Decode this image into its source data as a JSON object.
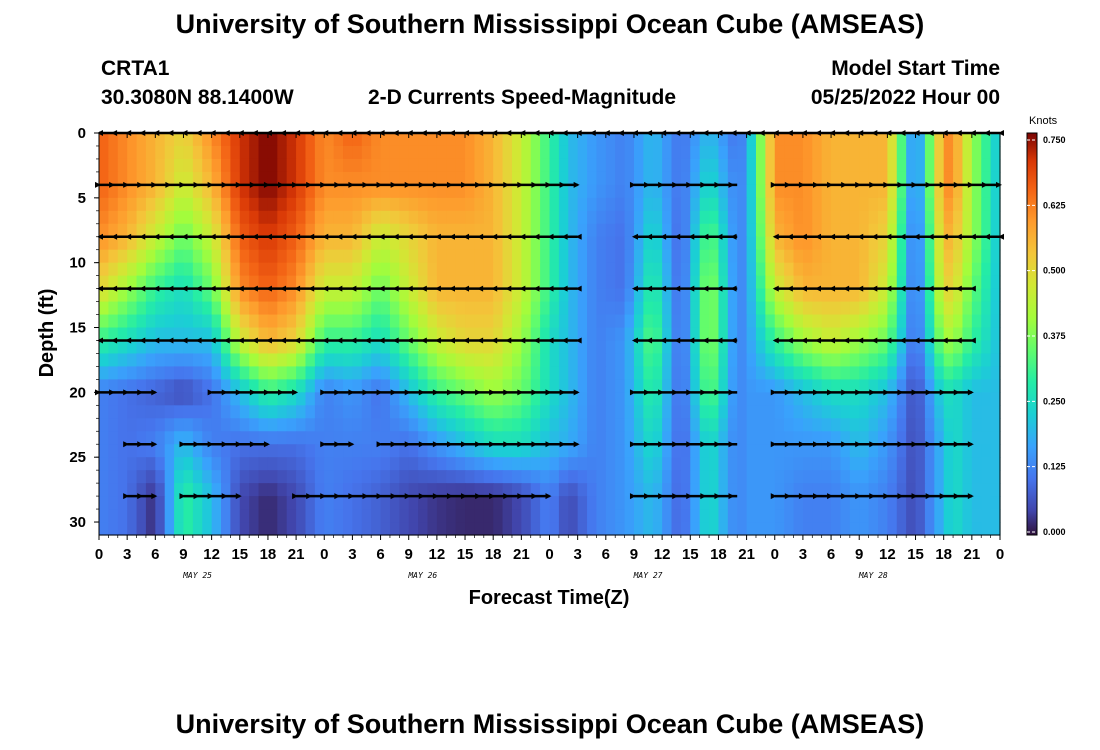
{
  "page": {
    "title_top": "University of Southern Mississippi Ocean Cube (AMSEAS)",
    "title_bottom": "University of Southern Mississippi Ocean Cube (AMSEAS)",
    "station": "CRTA1",
    "coords": "30.3080N  88.1400W",
    "plot_title": "2-D Currents Speed-Magnitude",
    "model_start_label": "Model Start Time",
    "model_start_value": "05/25/2022 Hour 00",
    "units_label": "Knots"
  },
  "chart_data": {
    "type": "heatmap",
    "title": "2-D Currents Speed-Magnitude",
    "xlabel": "Forecast Time(Z)",
    "ylabel": "Depth (ft)",
    "x_range_hours": [
      0,
      96
    ],
    "ylim": [
      31,
      0
    ],
    "y_ticks": [
      0,
      5,
      10,
      15,
      20,
      25,
      30
    ],
    "x_tick_labels": [
      "0",
      "3",
      "6",
      "9",
      "12",
      "15",
      "18",
      "21",
      "0",
      "3",
      "6",
      "9",
      "12",
      "15",
      "18",
      "21",
      "0",
      "3",
      "6",
      "9",
      "12",
      "15",
      "18",
      "21",
      "0",
      "3",
      "6",
      "9",
      "12",
      "15",
      "18",
      "21",
      "0"
    ],
    "day_labels": [
      "MAY 25",
      "MAY 26",
      "MAY 27",
      "MAY 28"
    ],
    "colorbar": {
      "label": "Knots",
      "ticks": [
        "0.750",
        "0.625",
        "0.500",
        "0.375",
        "0.250",
        "0.125",
        "0.000"
      ],
      "min": 0,
      "max": 0.75
    },
    "speed_rows_depth_ft": [
      0,
      4,
      8,
      12,
      16,
      20,
      24,
      28,
      31
    ],
    "speed_columns_hours": [
      0,
      3,
      6,
      9,
      12,
      15,
      18,
      21,
      24,
      27,
      30,
      33,
      36,
      39,
      42,
      45,
      48,
      50,
      53,
      56,
      59,
      62,
      65,
      68,
      69,
      72,
      75,
      78,
      81,
      84,
      87,
      90,
      91,
      93,
      96
    ],
    "speed_knots": [
      [
        0.65,
        0.6,
        0.55,
        0.5,
        0.6,
        0.7,
        0.75,
        0.7,
        0.6,
        0.65,
        0.6,
        0.6,
        0.6,
        0.6,
        0.55,
        0.45,
        0.3,
        0.2,
        0.15,
        0.12,
        0.2,
        0.1,
        0.2,
        0.1,
        0.15,
        0.6,
        0.6,
        0.55,
        0.55,
        0.55,
        0.1,
        0.6,
        0.6,
        0.4,
        0.2
      ],
      [
        0.65,
        0.6,
        0.55,
        0.45,
        0.55,
        0.7,
        0.75,
        0.7,
        0.6,
        0.6,
        0.6,
        0.6,
        0.6,
        0.6,
        0.55,
        0.45,
        0.3,
        0.2,
        0.15,
        0.12,
        0.2,
        0.1,
        0.25,
        0.12,
        0.15,
        0.6,
        0.6,
        0.55,
        0.55,
        0.55,
        0.1,
        0.6,
        0.6,
        0.4,
        0.2
      ],
      [
        0.6,
        0.55,
        0.45,
        0.35,
        0.45,
        0.65,
        0.7,
        0.65,
        0.55,
        0.55,
        0.45,
        0.5,
        0.55,
        0.55,
        0.55,
        0.45,
        0.3,
        0.2,
        0.12,
        0.1,
        0.25,
        0.08,
        0.35,
        0.12,
        0.15,
        0.55,
        0.6,
        0.55,
        0.55,
        0.5,
        0.08,
        0.55,
        0.55,
        0.4,
        0.2
      ],
      [
        0.5,
        0.4,
        0.3,
        0.25,
        0.35,
        0.6,
        0.65,
        0.6,
        0.45,
        0.45,
        0.35,
        0.45,
        0.55,
        0.55,
        0.55,
        0.45,
        0.3,
        0.2,
        0.12,
        0.1,
        0.3,
        0.08,
        0.4,
        0.12,
        0.15,
        0.45,
        0.55,
        0.55,
        0.55,
        0.45,
        0.08,
        0.5,
        0.5,
        0.35,
        0.2
      ],
      [
        0.3,
        0.25,
        0.2,
        0.2,
        0.2,
        0.45,
        0.55,
        0.5,
        0.3,
        0.3,
        0.25,
        0.35,
        0.45,
        0.5,
        0.5,
        0.4,
        0.25,
        0.2,
        0.12,
        0.15,
        0.35,
        0.08,
        0.4,
        0.12,
        0.15,
        0.3,
        0.4,
        0.45,
        0.4,
        0.35,
        0.08,
        0.4,
        0.4,
        0.3,
        0.2
      ],
      [
        0.12,
        0.1,
        0.08,
        0.05,
        0.1,
        0.2,
        0.3,
        0.25,
        0.12,
        0.15,
        0.1,
        0.2,
        0.3,
        0.35,
        0.4,
        0.35,
        0.25,
        0.2,
        0.12,
        0.15,
        0.3,
        0.08,
        0.35,
        0.12,
        0.15,
        0.15,
        0.2,
        0.25,
        0.25,
        0.2,
        0.05,
        0.25,
        0.25,
        0.2,
        0.2
      ],
      [
        0.12,
        0.1,
        0.12,
        0.2,
        0.12,
        0.1,
        0.1,
        0.1,
        0.12,
        0.12,
        0.12,
        0.1,
        0.15,
        0.2,
        0.25,
        0.25,
        0.2,
        0.18,
        0.12,
        0.15,
        0.25,
        0.08,
        0.25,
        0.12,
        0.15,
        0.15,
        0.15,
        0.15,
        0.2,
        0.15,
        0.05,
        0.2,
        0.25,
        0.2,
        0.2
      ],
      [
        0.12,
        0.1,
        0.02,
        0.3,
        0.2,
        0.05,
        0.02,
        0.05,
        0.12,
        0.1,
        0.08,
        0.05,
        0.03,
        0.02,
        0.02,
        0.05,
        0.12,
        0.05,
        0.12,
        0.15,
        0.2,
        0.08,
        0.25,
        0.12,
        0.15,
        0.15,
        0.12,
        0.12,
        0.15,
        0.12,
        0.05,
        0.2,
        0.25,
        0.2,
        0.2
      ],
      [
        0.12,
        0.1,
        0.02,
        0.3,
        0.2,
        0.05,
        0.02,
        0.05,
        0.12,
        0.1,
        0.08,
        0.05,
        0.03,
        0.02,
        0.02,
        0.05,
        0.12,
        0.05,
        0.12,
        0.15,
        0.2,
        0.08,
        0.25,
        0.12,
        0.15,
        0.15,
        0.12,
        0.12,
        0.15,
        0.12,
        0.05,
        0.2,
        0.25,
        0.2,
        0.2
      ]
    ],
    "vector_depths_ft": [
      0,
      4,
      8,
      12,
      16,
      20,
      24,
      28
    ],
    "vectors": [
      {
        "row": 0,
        "segments": [
          [
            0,
            96
          ]
        ],
        "dir": "left"
      },
      {
        "row": 1,
        "segments": [
          [
            0,
            51
          ],
          [
            57,
            68
          ],
          [
            72,
            96
          ]
        ],
        "dir": "right"
      },
      {
        "row": 2,
        "segments": [
          [
            0,
            51
          ],
          [
            57,
            68
          ],
          [
            72,
            96
          ]
        ],
        "dir": "left"
      },
      {
        "row": 3,
        "segments": [
          [
            0,
            51
          ],
          [
            57,
            68
          ],
          [
            72,
            93
          ]
        ],
        "dir": "left"
      },
      {
        "row": 4,
        "segments": [
          [
            0,
            51
          ],
          [
            57,
            68
          ],
          [
            72,
            93
          ]
        ],
        "dir": "left"
      },
      {
        "row": 5,
        "segments": [
          [
            0,
            6
          ],
          [
            12,
            21
          ],
          [
            24,
            51
          ],
          [
            57,
            68
          ],
          [
            72,
            93
          ]
        ],
        "dir": "right"
      },
      {
        "row": 6,
        "segments": [
          [
            3,
            6
          ],
          [
            9,
            18
          ],
          [
            24,
            27
          ],
          [
            30,
            51
          ],
          [
            57,
            68
          ],
          [
            72,
            93
          ]
        ],
        "dir": "right"
      },
      {
        "row": 7,
        "segments": [
          [
            3,
            6
          ],
          [
            9,
            15
          ],
          [
            21,
            48
          ],
          [
            57,
            68
          ],
          [
            72,
            93
          ]
        ],
        "dir": "right"
      }
    ]
  }
}
